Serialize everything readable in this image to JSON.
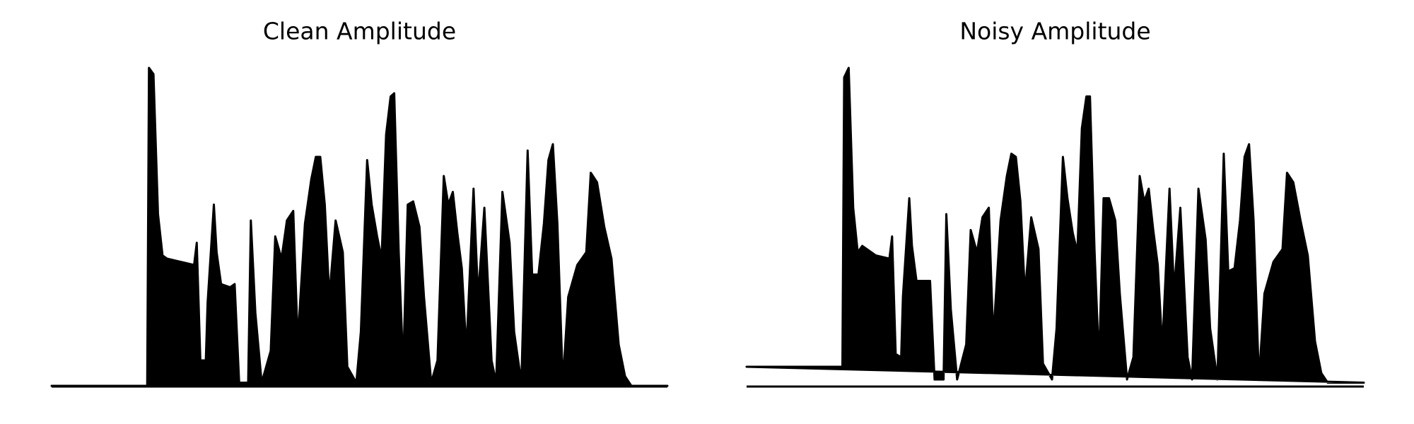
{
  "chart_data": [
    {
      "type": "area",
      "title": "Clean Amplitude",
      "color": "#000000",
      "xlim": [
        0,
        683
      ],
      "ylim": [
        0,
        1
      ],
      "x": [
        0,
        106,
        108,
        113,
        118,
        123,
        128,
        143,
        158,
        161,
        165,
        171,
        173,
        180,
        183,
        188,
        198,
        203,
        208,
        218,
        221,
        226,
        233,
        243,
        248,
        255,
        261,
        268,
        273,
        281,
        288,
        293,
        298,
        303,
        308,
        315,
        323,
        328,
        338,
        343,
        350,
        355,
        361,
        366,
        371,
        376,
        380,
        385,
        390,
        395,
        401,
        408,
        413,
        421,
        428,
        435,
        440,
        445,
        450,
        455,
        460,
        468,
        473,
        480,
        488,
        493,
        500,
        508,
        513,
        521,
        528,
        533,
        540,
        546,
        551,
        556,
        561,
        567,
        573,
        583,
        593,
        598,
        605,
        613,
        621,
        629,
        636,
        643,
        683
      ],
      "values": [
        0,
        0,
        1,
        0.98,
        0.54,
        0.41,
        0.4,
        0.39,
        0.38,
        0.45,
        0.08,
        0.08,
        0.26,
        0.57,
        0.42,
        0.32,
        0.31,
        0.32,
        0.01,
        0.01,
        0.52,
        0.23,
        0.01,
        0.11,
        0.47,
        0.4,
        0.52,
        0.55,
        0.14,
        0.51,
        0.65,
        0.72,
        0.72,
        0.57,
        0.28,
        0.52,
        0.42,
        0.06,
        0.01,
        0.17,
        0.71,
        0.57,
        0.47,
        0.4,
        0.79,
        0.91,
        0.92,
        0.42,
        0.06,
        0.57,
        0.58,
        0.5,
        0.28,
        0.01,
        0.08,
        0.66,
        0.57,
        0.61,
        0.48,
        0.37,
        0.11,
        0.62,
        0.28,
        0.56,
        0.08,
        0.01,
        0.61,
        0.45,
        0.17,
        0.01,
        0.74,
        0.35,
        0.35,
        0.51,
        0.71,
        0.76,
        0.51,
        0.01,
        0.28,
        0.38,
        0.42,
        0.67,
        0.64,
        0.5,
        0.4,
        0.13,
        0.03,
        0,
        0
      ]
    },
    {
      "type": "area",
      "title": "Noisy Amplitude",
      "color": "#000000",
      "xlim": [
        0,
        683
      ],
      "ylim": [
        0,
        1
      ],
      "x": [
        0,
        106,
        108,
        113,
        118,
        123,
        128,
        143,
        158,
        161,
        165,
        171,
        173,
        180,
        183,
        188,
        198,
        203,
        208,
        218,
        221,
        226,
        233,
        243,
        248,
        255,
        261,
        268,
        273,
        281,
        288,
        293,
        298,
        303,
        308,
        315,
        323,
        328,
        338,
        343,
        350,
        355,
        361,
        366,
        371,
        376,
        380,
        385,
        390,
        395,
        401,
        408,
        413,
        421,
        428,
        435,
        440,
        445,
        450,
        455,
        460,
        468,
        473,
        480,
        488,
        493,
        500,
        508,
        513,
        521,
        528,
        533,
        540,
        546,
        551,
        556,
        561,
        567,
        573,
        583,
        593,
        598,
        605,
        613,
        621,
        629,
        636,
        643,
        683
      ],
      "values": [
        0.06,
        0.06,
        0.97,
        1,
        0.56,
        0.42,
        0.44,
        0.41,
        0.4,
        0.47,
        0.1,
        0.09,
        0.28,
        0.59,
        0.44,
        0.33,
        0.33,
        0.33,
        0.02,
        0.02,
        0.54,
        0.24,
        0.02,
        0.13,
        0.49,
        0.42,
        0.53,
        0.56,
        0.15,
        0.52,
        0.66,
        0.73,
        0.72,
        0.58,
        0.29,
        0.53,
        0.43,
        0.07,
        0.02,
        0.18,
        0.72,
        0.59,
        0.48,
        0.42,
        0.81,
        0.91,
        0.91,
        0.43,
        0.07,
        0.59,
        0.59,
        0.52,
        0.29,
        0.02,
        0.09,
        0.66,
        0.58,
        0.62,
        0.49,
        0.38,
        0.12,
        0.62,
        0.3,
        0.56,
        0.09,
        0.02,
        0.62,
        0.46,
        0.18,
        0.02,
        0.73,
        0.36,
        0.37,
        0.52,
        0.72,
        0.76,
        0.52,
        0.02,
        0.29,
        0.39,
        0.43,
        0.67,
        0.64,
        0.52,
        0.41,
        0.14,
        0.04,
        0.01,
        0.01
      ]
    }
  ]
}
